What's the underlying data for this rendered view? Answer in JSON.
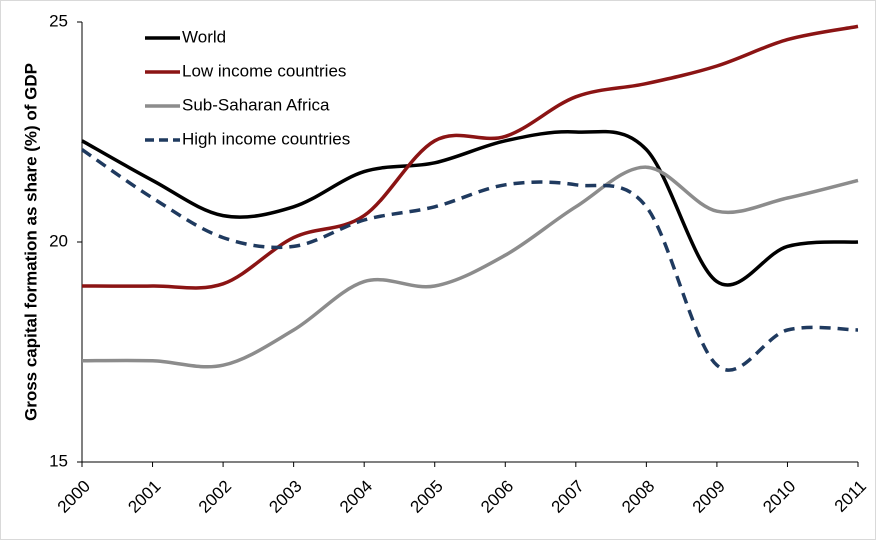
{
  "chart_data": {
    "type": "line",
    "y_label": "Gross capital formation as share (%) of GDP",
    "categories": [
      "2000",
      "2001",
      "2002",
      "2003",
      "2004",
      "2005",
      "2006",
      "2007",
      "2008",
      "2009",
      "2010",
      "2011"
    ],
    "series": [
      {
        "name": "World",
        "color": "#000000",
        "dashed": false,
        "values": [
          22.3,
          21.4,
          20.6,
          20.8,
          21.6,
          21.8,
          22.3,
          22.5,
          22.1,
          19.1,
          19.9,
          20.0
        ]
      },
      {
        "name": "Low income countries",
        "color": "#8b1414",
        "dashed": false,
        "values": [
          19.0,
          19.0,
          19.05,
          20.1,
          20.6,
          22.3,
          22.4,
          23.3,
          23.6,
          24.0,
          24.6,
          24.9
        ]
      },
      {
        "name": "Sub-Saharan Africa",
        "color": "#8c8c8c",
        "dashed": false,
        "values": [
          17.3,
          17.3,
          17.2,
          18.0,
          19.1,
          19.0,
          19.7,
          20.8,
          21.7,
          20.7,
          21.0,
          21.4
        ]
      },
      {
        "name": "High income countries",
        "color": "#1f3a5f",
        "dashed": true,
        "values": [
          22.1,
          21.0,
          20.1,
          19.9,
          20.5,
          20.8,
          21.3,
          21.3,
          20.8,
          17.2,
          18.0,
          18.0
        ]
      }
    ],
    "ylim": [
      15,
      25
    ],
    "yticks": [
      15,
      20,
      25
    ],
    "grid": false,
    "legend": "top-left"
  }
}
